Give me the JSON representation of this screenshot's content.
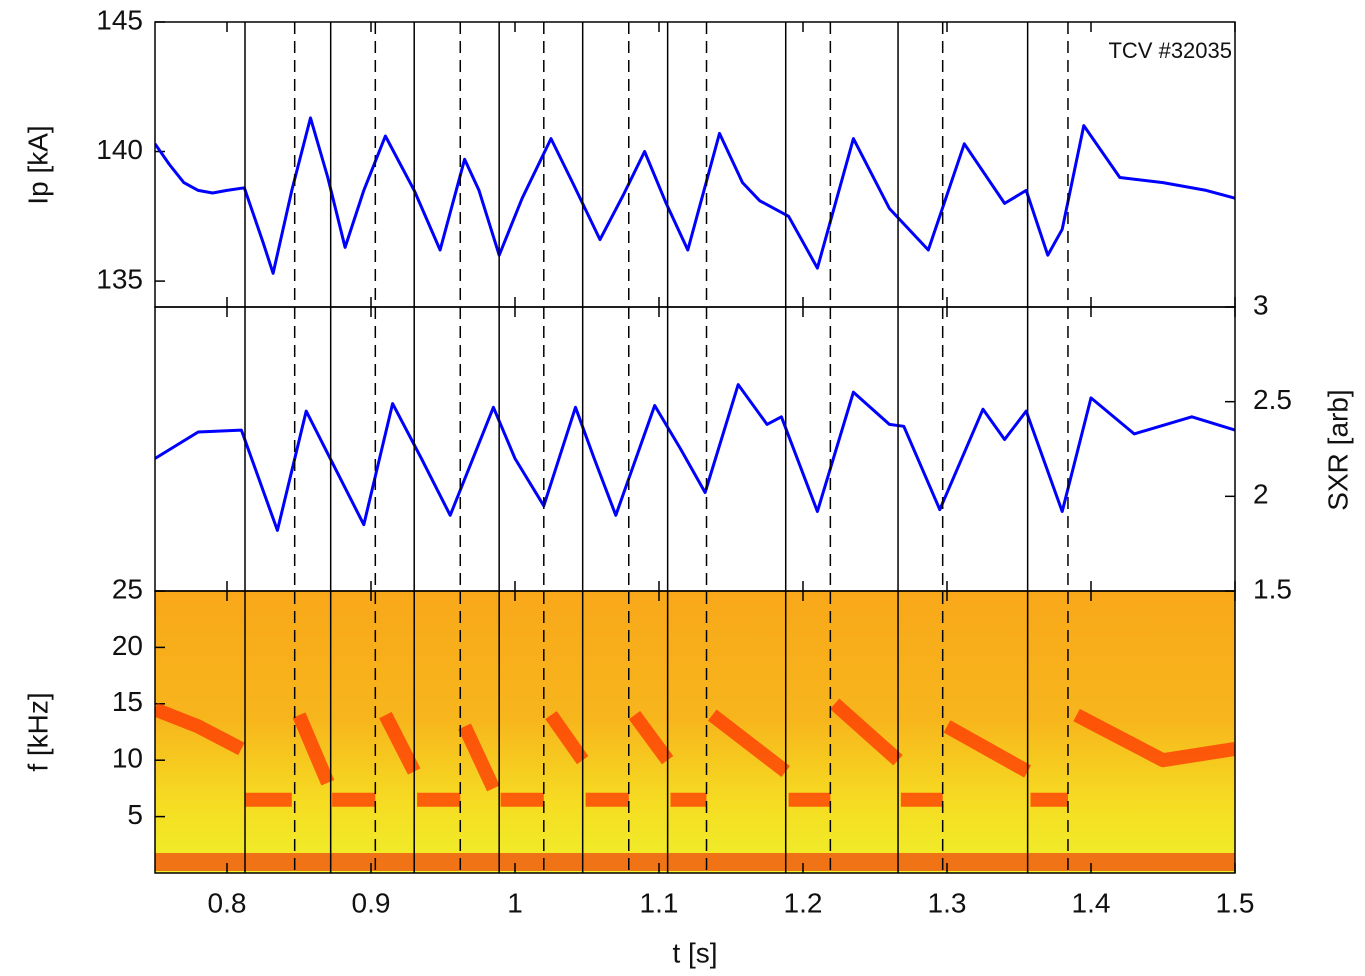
{
  "chart_data": [
    {
      "type": "line",
      "ylabel": "Ip [kA]",
      "annotation": "TCV #32035",
      "xlim": [
        0.75,
        1.5
      ],
      "ylim": [
        134,
        145
      ],
      "yticks": [
        135,
        140,
        145
      ],
      "yaxis_side": "left",
      "vlines_solid": [
        0.8125,
        0.872,
        0.93,
        0.989,
        1.047,
        1.106,
        1.188,
        1.266,
        1.356
      ],
      "vlines_dashed": [
        0.847,
        0.903,
        0.962,
        1.02,
        1.079,
        1.133,
        1.219,
        1.297,
        1.384
      ],
      "x": [
        0.75,
        0.76,
        0.77,
        0.78,
        0.79,
        0.8,
        0.812,
        0.825,
        0.832,
        0.845,
        0.858,
        0.87,
        0.882,
        0.895,
        0.91,
        0.93,
        0.948,
        0.965,
        0.975,
        0.989,
        1.005,
        1.025,
        1.04,
        1.059,
        1.075,
        1.09,
        1.105,
        1.12,
        1.142,
        1.158,
        1.17,
        1.19,
        1.21,
        1.235,
        1.26,
        1.287,
        1.312,
        1.34,
        1.355,
        1.37,
        1.38,
        1.395,
        1.42,
        1.45,
        1.48,
        1.5
      ],
      "series": [
        {
          "color": "#0000ff",
          "values": [
            140.3,
            139.5,
            138.8,
            138.5,
            138.4,
            138.5,
            138.6,
            136.5,
            135.3,
            138.5,
            141.3,
            139,
            136.3,
            138.5,
            140.6,
            138.5,
            136.2,
            139.7,
            138.5,
            136,
            138.2,
            140.5,
            138.8,
            136.6,
            138.3,
            140,
            138,
            136.2,
            140.7,
            138.8,
            138.1,
            137.5,
            135.5,
            140.5,
            137.8,
            136.2,
            140.3,
            138,
            138.5,
            136,
            137,
            141,
            139,
            138.8,
            138.5,
            138.2
          ]
        }
      ]
    },
    {
      "type": "line",
      "ylabel": "SXR [arb]",
      "xlim": [
        0.75,
        1.5
      ],
      "ylim": [
        1.5,
        3
      ],
      "yticks": [
        1.5,
        2,
        2.5,
        3
      ],
      "yaxis_side": "right",
      "x": [
        0.75,
        0.78,
        0.81,
        0.835,
        0.855,
        0.875,
        0.895,
        0.915,
        0.935,
        0.955,
        0.985,
        1.0,
        1.02,
        1.042,
        1.055,
        1.07,
        1.097,
        1.115,
        1.132,
        1.155,
        1.175,
        1.185,
        1.21,
        1.235,
        1.26,
        1.27,
        1.295,
        1.325,
        1.34,
        1.355,
        1.38,
        1.4,
        1.43,
        1.47,
        1.5
      ],
      "series": [
        {
          "color": "#0000ff",
          "values": [
            2.2,
            2.34,
            2.35,
            1.82,
            2.45,
            2.15,
            1.85,
            2.49,
            2.2,
            1.9,
            2.47,
            2.2,
            1.95,
            2.47,
            2.2,
            1.9,
            2.48,
            2.25,
            2.02,
            2.59,
            2.38,
            2.42,
            1.92,
            2.55,
            2.38,
            2.37,
            1.93,
            2.46,
            2.3,
            2.45,
            1.92,
            2.52,
            2.33,
            2.42,
            2.35
          ]
        }
      ]
    },
    {
      "type": "spectrogram",
      "ylabel": "f [kHz]",
      "xlabel": "t [s]",
      "xlim": [
        0.75,
        1.5
      ],
      "xticks": [
        0.8,
        0.9,
        1,
        1.1,
        1.2,
        1.3,
        1.4,
        1.5
      ],
      "ylim": [
        0,
        25
      ],
      "yticks": [
        5,
        10,
        15,
        20,
        25
      ],
      "yaxis_side": "left",
      "x": [
        0.75,
        0.78,
        0.81,
        0.811,
        0.813,
        0.845,
        0.847,
        0.85,
        0.87,
        0.871,
        0.873,
        0.903,
        0.905,
        0.91,
        0.93,
        0.931,
        0.932,
        0.962,
        0.963,
        0.965,
        0.985,
        0.987,
        0.99,
        1.02,
        1.022,
        1.025,
        1.047,
        1.048,
        1.049,
        1.079,
        1.081,
        1.083,
        1.106,
        1.107,
        1.108,
        1.133,
        1.135,
        1.137,
        1.188,
        1.189,
        1.19,
        1.219,
        1.22,
        1.222,
        1.266,
        1.267,
        1.268,
        1.297,
        1.298,
        1.3,
        1.356,
        1.357,
        1.358,
        1.384,
        1.387,
        1.39,
        1.45,
        1.5
      ],
      "series": [
        {
          "color": "#ff2a00",
          "values": [
            14.5,
            13,
            11,
            null,
            6.5,
            6.5,
            null,
            14,
            8,
            null,
            6.5,
            6.5,
            null,
            14,
            9,
            null,
            6.5,
            6.5,
            null,
            13,
            7.5,
            null,
            6.5,
            6.5,
            null,
            14,
            10,
            null,
            6.5,
            6.5,
            null,
            14,
            10,
            null,
            6.5,
            6.5,
            null,
            14,
            9,
            null,
            6.5,
            6.5,
            null,
            15,
            10,
            null,
            6.5,
            6.5,
            null,
            13,
            9,
            null,
            6.5,
            6.5,
            null,
            14,
            10,
            11
          ]
        }
      ]
    }
  ]
}
